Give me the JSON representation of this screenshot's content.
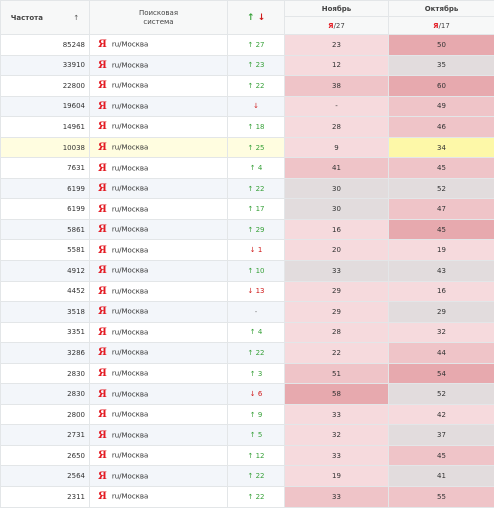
{
  "header": {
    "freq_label": "Частота",
    "freq_sort_icon": "↑",
    "engine_label_line1": "Поисковая",
    "engine_label_line2": "система",
    "change_up": "↑",
    "change_down": "↓",
    "months": [
      {
        "name": "Ноябрь",
        "ya": "Я",
        "sub": "/27"
      },
      {
        "name": "Октябрь",
        "ya": "Я",
        "sub": "/17"
      }
    ]
  },
  "colors": {
    "cell_light": "#f6dadd",
    "cell_mid": "#efc4c8",
    "cell_dark": "#e7a9ae",
    "cell_gray": "#e2dcdd",
    "cell_highlight": "#fdf8a8"
  },
  "rows": [
    {
      "freq": "85248",
      "engine": "ru/Москва",
      "dir": "up",
      "change": "27",
      "nov": "23",
      "oct": "50"
    },
    {
      "freq": "33910",
      "engine": "ru/Москва",
      "dir": "up",
      "change": "23",
      "nov": "12",
      "oct": "35"
    },
    {
      "freq": "22800",
      "engine": "ru/Москва",
      "dir": "up",
      "change": "22",
      "nov": "38",
      "oct": "60"
    },
    {
      "freq": "19604",
      "engine": "ru/Москва",
      "dir": "down",
      "change": "",
      "nov": "-",
      "oct": "49"
    },
    {
      "freq": "14961",
      "engine": "ru/Москва",
      "dir": "up",
      "change": "18",
      "nov": "28",
      "oct": "46"
    },
    {
      "freq": "10038",
      "engine": "ru/Москва",
      "dir": "up",
      "change": "25",
      "nov": "9",
      "oct": "34"
    },
    {
      "freq": "7631",
      "engine": "ru/Москва",
      "dir": "up",
      "change": "4",
      "nov": "41",
      "oct": "45"
    },
    {
      "freq": "6199",
      "engine": "ru/Москва",
      "dir": "up",
      "change": "22",
      "nov": "30",
      "oct": "52"
    },
    {
      "freq": "6199",
      "engine": "ru/Москва",
      "dir": "up",
      "change": "17",
      "nov": "30",
      "oct": "47"
    },
    {
      "freq": "5861",
      "engine": "ru/Москва",
      "dir": "up",
      "change": "29",
      "nov": "16",
      "oct": "45"
    },
    {
      "freq": "5581",
      "engine": "ru/Москва",
      "dir": "down",
      "change": "1",
      "nov": "20",
      "oct": "19"
    },
    {
      "freq": "4912",
      "engine": "ru/Москва",
      "dir": "up",
      "change": "10",
      "nov": "33",
      "oct": "43"
    },
    {
      "freq": "4452",
      "engine": "ru/Москва",
      "dir": "down",
      "change": "13",
      "nov": "29",
      "oct": "16"
    },
    {
      "freq": "3518",
      "engine": "ru/Москва",
      "dir": "none",
      "change": "-",
      "nov": "29",
      "oct": "29"
    },
    {
      "freq": "3351",
      "engine": "ru/Москва",
      "dir": "up",
      "change": "4",
      "nov": "28",
      "oct": "32"
    },
    {
      "freq": "3286",
      "engine": "ru/Москва",
      "dir": "up",
      "change": "22",
      "nov": "22",
      "oct": "44"
    },
    {
      "freq": "2830",
      "engine": "ru/Москва",
      "dir": "up",
      "change": "3",
      "nov": "51",
      "oct": "54"
    },
    {
      "freq": "2830",
      "engine": "ru/Москва",
      "dir": "down",
      "change": "6",
      "nov": "58",
      "oct": "52"
    },
    {
      "freq": "2800",
      "engine": "ru/Москва",
      "dir": "up",
      "change": "9",
      "nov": "33",
      "oct": "42"
    },
    {
      "freq": "2731",
      "engine": "ru/Москва",
      "dir": "up",
      "change": "5",
      "nov": "32",
      "oct": "37"
    },
    {
      "freq": "2650",
      "engine": "ru/Москва",
      "dir": "up",
      "change": "12",
      "nov": "33",
      "oct": "45"
    },
    {
      "freq": "2564",
      "engine": "ru/Москва",
      "dir": "up",
      "change": "22",
      "nov": "19",
      "oct": "41"
    },
    {
      "freq": "2311",
      "engine": "ru/Москва",
      "dir": "up",
      "change": "22",
      "nov": "33",
      "oct": "55"
    }
  ]
}
